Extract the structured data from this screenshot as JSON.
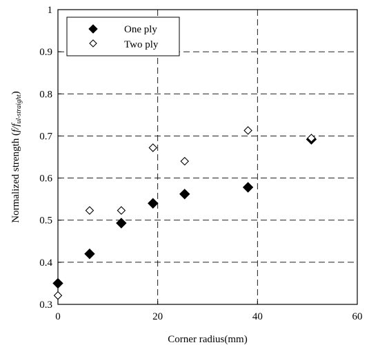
{
  "chart_data": {
    "type": "scatter",
    "title": "",
    "xlabel": "Corner radius(mm)",
    "ylabel_main": "Normalized strength (",
    "ylabel_f": "f/f",
    "ylabel_sub": "ul-straight",
    "ylabel_end": ")",
    "xlim": [
      0,
      60
    ],
    "ylim": [
      0.3,
      1.0
    ],
    "xticks": [
      0,
      20,
      40,
      60
    ],
    "xtick_labels": [
      "0",
      "20",
      "40",
      "60"
    ],
    "yticks": [
      0.3,
      0.4,
      0.5,
      0.6,
      0.7,
      0.8,
      0.9,
      1.0
    ],
    "ytick_labels": [
      "0.3",
      "0.4",
      "0.5",
      "0.6",
      "0.7",
      "0.8",
      "0.9",
      "1"
    ],
    "grid": "dashed",
    "legend_position": "top-left",
    "series": [
      {
        "name": "One ply",
        "marker": "filled-diamond",
        "color": "#000000",
        "points": [
          [
            0,
            0.35
          ],
          [
            6.35,
            0.42
          ],
          [
            12.7,
            0.493
          ],
          [
            19.05,
            0.54
          ],
          [
            25.4,
            0.562
          ],
          [
            38.1,
            0.578
          ],
          [
            50.8,
            0.692
          ]
        ]
      },
      {
        "name": "Two ply",
        "marker": "open-diamond",
        "color": "#000000",
        "points": [
          [
            0,
            0.321
          ],
          [
            6.35,
            0.523
          ],
          [
            12.7,
            0.523
          ],
          [
            19.05,
            0.672
          ],
          [
            25.4,
            0.64
          ],
          [
            38.1,
            0.713
          ],
          [
            50.8,
            0.695
          ]
        ]
      }
    ]
  }
}
